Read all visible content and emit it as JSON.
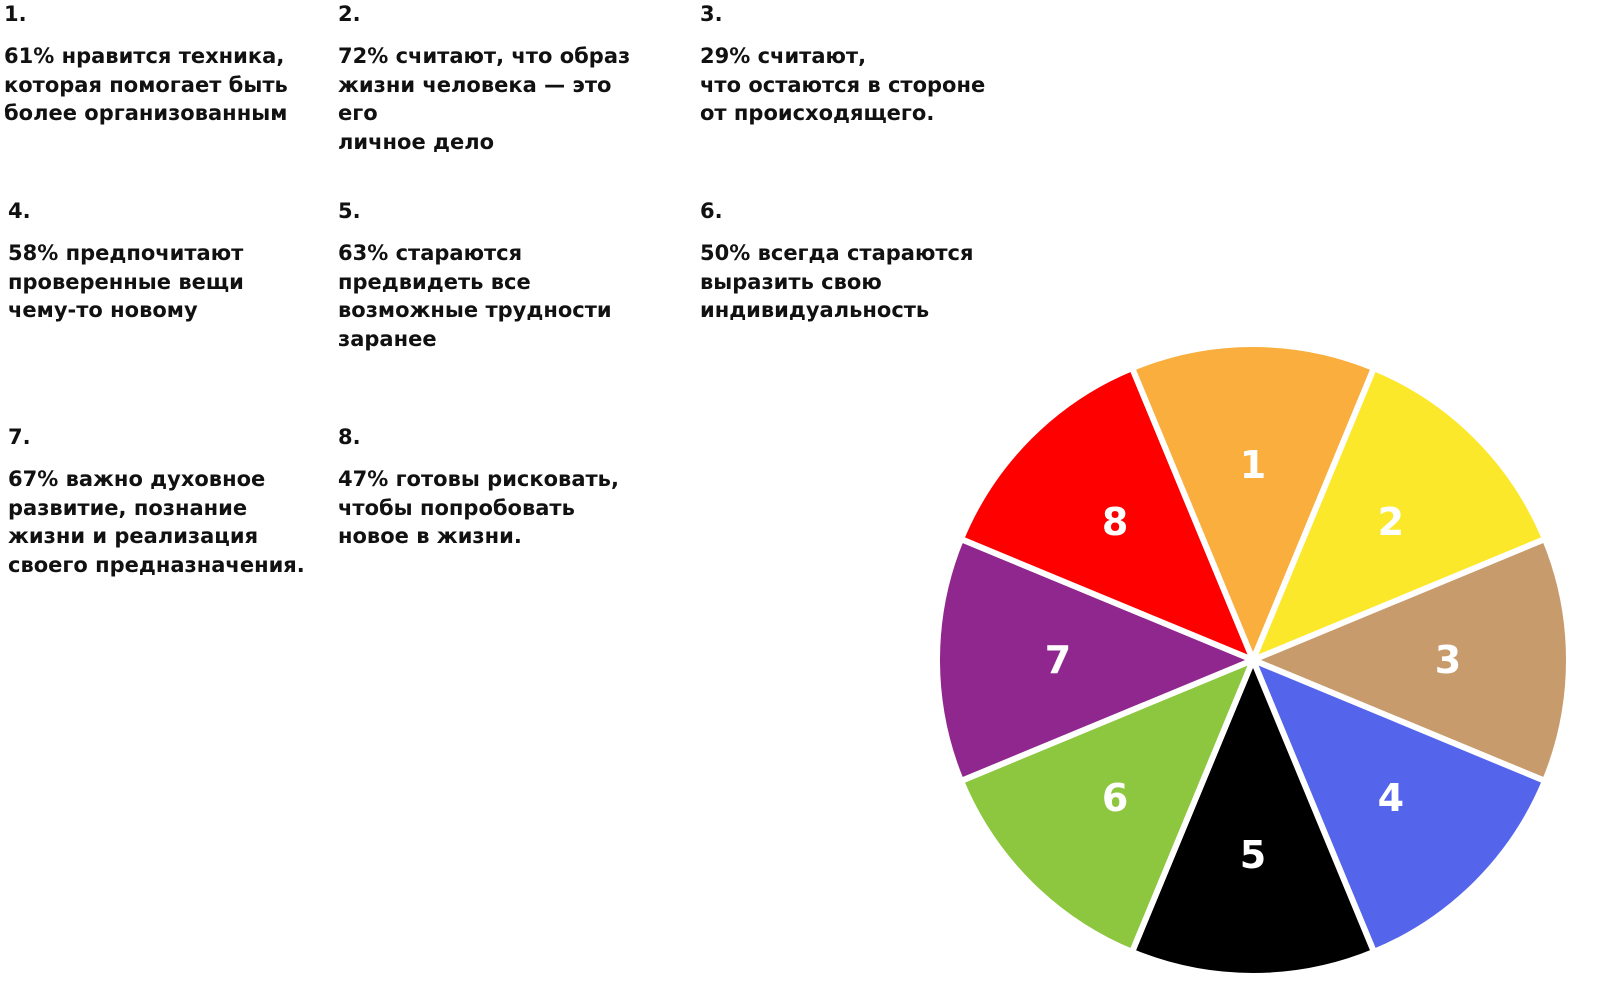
{
  "stats": [
    {
      "num": "1.",
      "text": "61% нравится техника,\nкоторая помогает быть\nболее организованным"
    },
    {
      "num": "2.",
      "text": "72% считают, что образ\nжизни человека — это его\nличное дело"
    },
    {
      "num": "3.",
      "text": "29% считают,\nчто остаются в стороне\nот происходящего."
    },
    {
      "num": "4.",
      "text": "58% предпочитают\nпроверенные вещи\nчему-то новому"
    },
    {
      "num": "5.",
      "text": "63% стараются\nпредвидеть все\nвозможные трудности\nзаранее"
    },
    {
      "num": "6.",
      "text": "50% всегда стараются\nвыразить свою\nиндивидуальность"
    },
    {
      "num": "7.",
      "text": "67% важно духовное\nразвитие, познание\nжизни и реализация\nсвоего предназначения."
    },
    {
      "num": "8.",
      "text": "47% готовы рисковать,\nчтобы попробовать\nновое в жизни."
    }
  ],
  "chart_data": {
    "type": "pie",
    "slices": [
      {
        "label": "1",
        "value": 1,
        "color": "#F9AE3D"
      },
      {
        "label": "2",
        "value": 1,
        "color": "#FCE82B"
      },
      {
        "label": "3",
        "value": 1,
        "color": "#C89B6C"
      },
      {
        "label": "4",
        "value": 1,
        "color": "#5465EC"
      },
      {
        "label": "5",
        "value": 1,
        "color": "#000000"
      },
      {
        "label": "6",
        "value": 1,
        "color": "#8DC63F"
      },
      {
        "label": "7",
        "value": 1,
        "color": "#90278E"
      },
      {
        "label": "8",
        "value": 1,
        "color": "#FF0000"
      }
    ]
  }
}
